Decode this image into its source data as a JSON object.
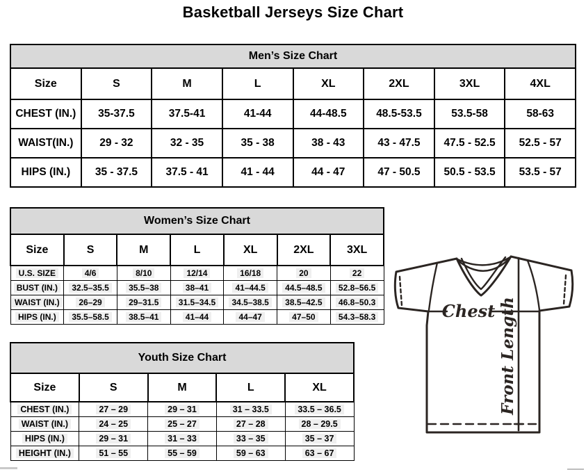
{
  "page": {
    "title": "Basketball Jerseys Size Chart"
  },
  "tables": {
    "men": {
      "title": "Men’s Size Chart",
      "columns": [
        "Size",
        "S",
        "M",
        "L",
        "XL",
        "2XL",
        "3XL",
        "4XL"
      ],
      "rows": [
        {
          "label": "CHEST (IN.)",
          "values": [
            "35-37.5",
            "37.5-41",
            "41-44",
            "44-48.5",
            "48.5-53.5",
            "53.5-58",
            "58-63"
          ]
        },
        {
          "label": "WAIST(IN.)",
          "values": [
            "29 - 32",
            "32 - 35",
            "35 - 38",
            "38 - 43",
            "43 - 47.5",
            "47.5 - 52.5",
            "52.5 - 57"
          ]
        },
        {
          "label": "HIPS (IN.)",
          "values": [
            "35 - 37.5",
            "37.5 - 41",
            "41 - 44",
            "44 - 47",
            "47 - 50.5",
            "50.5 - 53.5",
            "53.5 - 57"
          ]
        }
      ]
    },
    "women": {
      "title": "Women’s Size Chart",
      "columns": [
        "Size",
        "S",
        "M",
        "L",
        "XL",
        "2XL",
        "3XL"
      ],
      "rows": [
        {
          "label": "U.S. SIZE",
          "values": [
            "4/6",
            "8/10",
            "12/14",
            "16/18",
            "20",
            "22"
          ]
        },
        {
          "label": "BUST (IN.)",
          "values": [
            "32.5–35.5",
            "35.5–38",
            "38–41",
            "41–44.5",
            "44.5–48.5",
            "52.8–56.5"
          ]
        },
        {
          "label": "WAIST (IN.)",
          "values": [
            "26–29",
            "29–31.5",
            "31.5–34.5",
            "34.5–38.5",
            "38.5–42.5",
            "46.8–50.3"
          ]
        },
        {
          "label": "HIPS (IN.)",
          "values": [
            "35.5–58.5",
            "38.5–41",
            "41–44",
            "44–47",
            "47–50",
            "54.3–58.3"
          ]
        }
      ]
    },
    "youth": {
      "title": "Youth Size Chart",
      "columns": [
        "Size",
        "S",
        "M",
        "L",
        "XL"
      ],
      "rows": [
        {
          "label": "CHEST (IN.)",
          "values": [
            "27 – 29",
            "29 – 31",
            "31 – 33.5",
            "33.5 – 36.5"
          ]
        },
        {
          "label": "WAIST (IN.)",
          "values": [
            "24 – 25",
            "25 – 27",
            "27 – 28",
            "28 – 29.5"
          ]
        },
        {
          "label": "HIPS (IN.)",
          "values": [
            "29 – 31",
            "31 – 33",
            "33 – 35",
            "35 – 37"
          ]
        },
        {
          "label": "HEIGHT (IN.)",
          "values": [
            "51 – 55",
            "55 – 59",
            "59 – 63",
            "63 – 67"
          ]
        }
      ]
    }
  },
  "diagram": {
    "chest_label": "Chest",
    "front_length_label": "Front Length"
  },
  "colors": {
    "table_header_bg": "#d9d9d9",
    "cell_highlight_bg": "#efefef",
    "table_border": "#000000",
    "jersey_line": "#2b2522"
  }
}
